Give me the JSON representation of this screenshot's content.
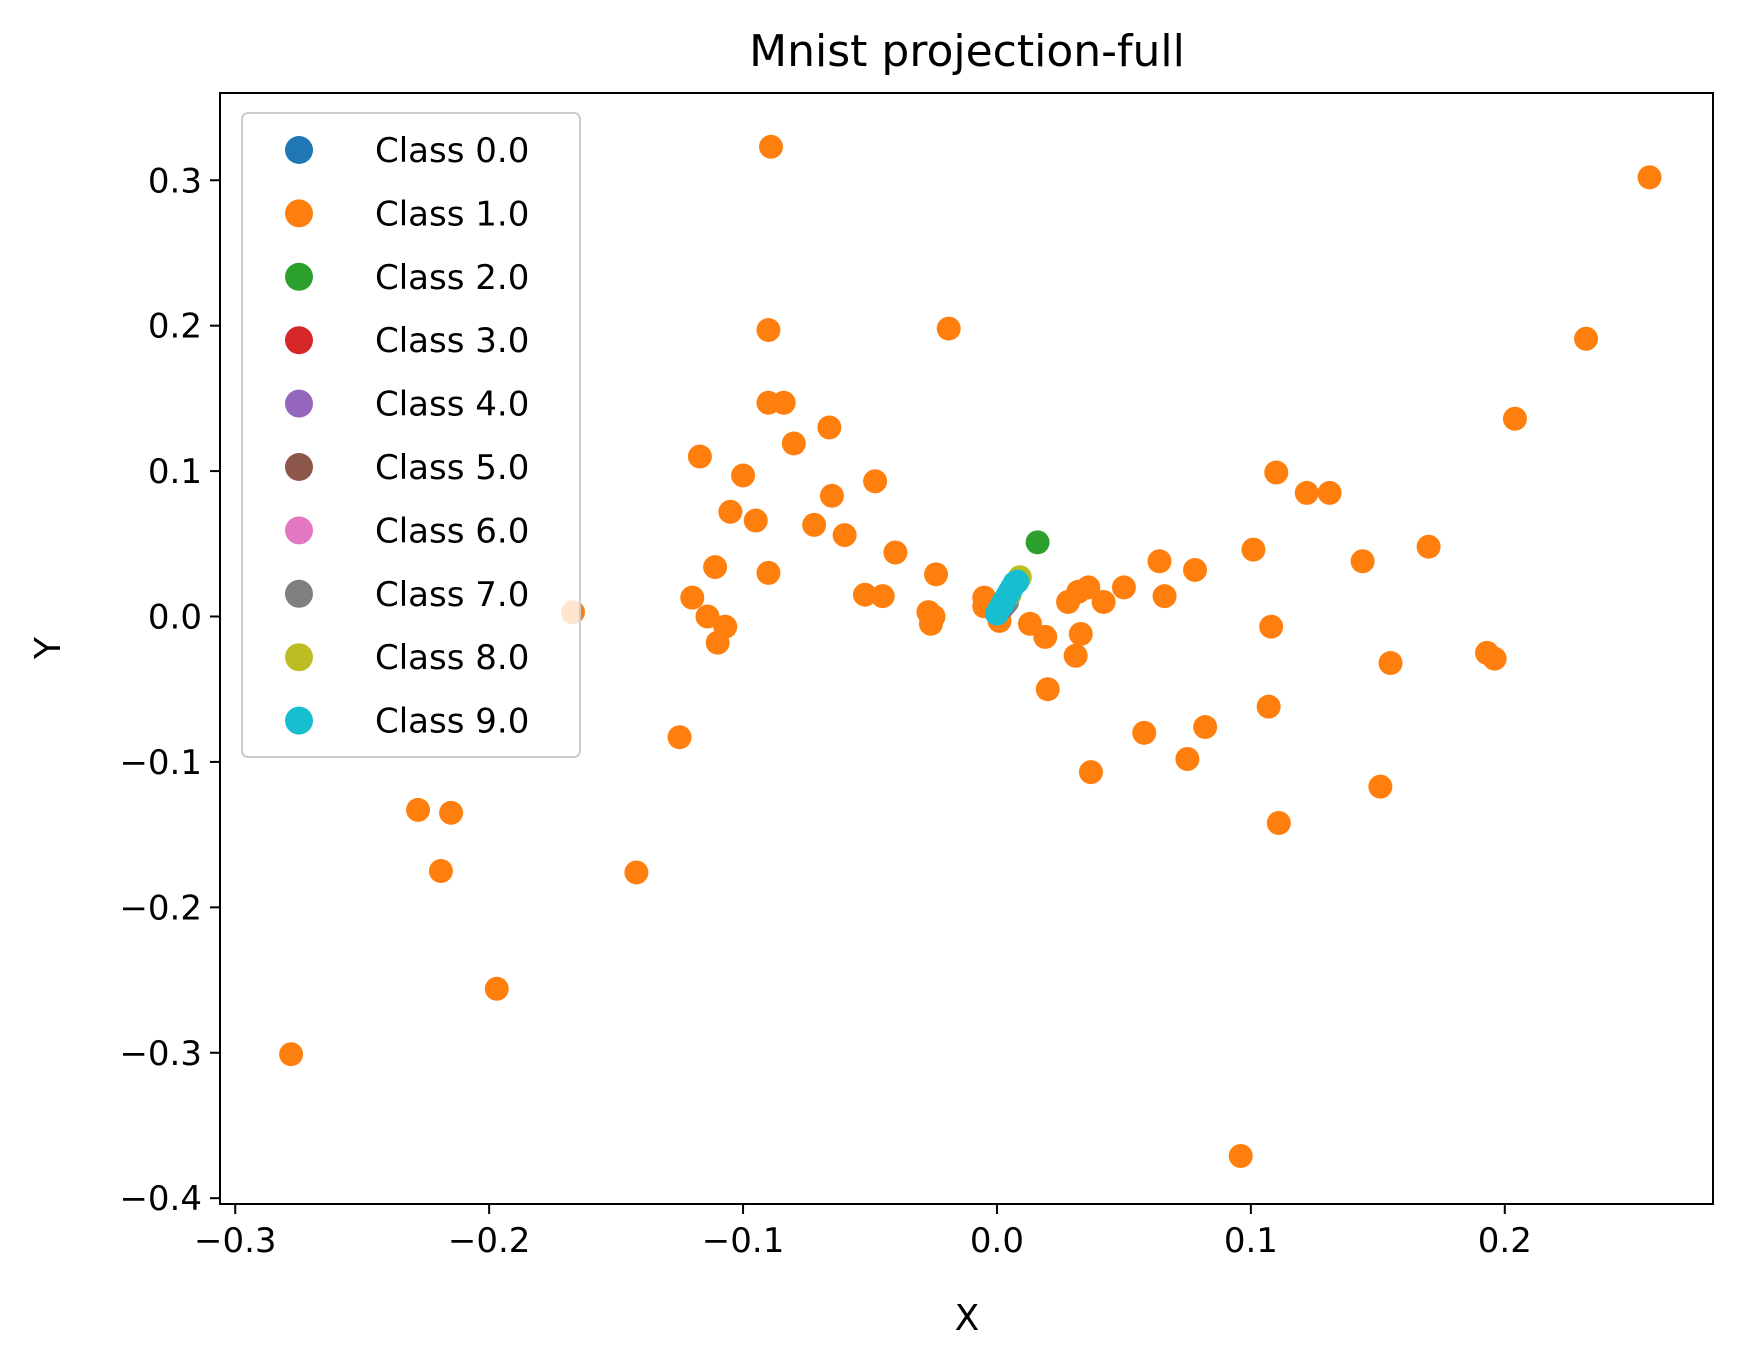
{
  "chart_data": {
    "type": "scatter",
    "title": "Mnist projection-full",
    "xlabel": "X",
    "ylabel": "Y",
    "xlim": [
      -0.306,
      0.282
    ],
    "ylim": [
      -0.404,
      0.36
    ],
    "xticks": [
      {
        "value": -0.3,
        "label": "−0.3"
      },
      {
        "value": -0.2,
        "label": "−0.2"
      },
      {
        "value": -0.1,
        "label": "−0.1"
      },
      {
        "value": 0.0,
        "label": "0.0"
      },
      {
        "value": 0.1,
        "label": "0.1"
      },
      {
        "value": 0.2,
        "label": "0.2"
      }
    ],
    "yticks": [
      {
        "value": 0.3,
        "label": "0.3"
      },
      {
        "value": 0.2,
        "label": "0.2"
      },
      {
        "value": 0.1,
        "label": "0.1"
      },
      {
        "value": 0.0,
        "label": "0.0"
      },
      {
        "value": -0.1,
        "label": "−0.1"
      },
      {
        "value": -0.2,
        "label": "−0.2"
      },
      {
        "value": -0.3,
        "label": "−0.3"
      },
      {
        "value": -0.4,
        "label": "−0.4"
      }
    ],
    "grid": false,
    "legend_position": "upper-left",
    "series": [
      {
        "name": "Class 0.0",
        "color": "#1f77b4",
        "points": [
          [
            0.0,
            0.002
          ],
          [
            0.001,
            0.004
          ]
        ]
      },
      {
        "name": "Class 1.0",
        "color": "#ff7f0e",
        "points": [
          [
            -0.089,
            0.323
          ],
          [
            0.257,
            0.302
          ],
          [
            -0.09,
            0.197
          ],
          [
            -0.019,
            0.198
          ],
          [
            0.232,
            0.191
          ],
          [
            -0.09,
            0.147
          ],
          [
            -0.084,
            0.147
          ],
          [
            0.204,
            0.136
          ],
          [
            -0.066,
            0.13
          ],
          [
            -0.08,
            0.119
          ],
          [
            -0.117,
            0.11
          ],
          [
            0.11,
            0.099
          ],
          [
            -0.1,
            0.097
          ],
          [
            -0.048,
            0.093
          ],
          [
            0.122,
            0.085
          ],
          [
            0.131,
            0.085
          ],
          [
            -0.065,
            0.083
          ],
          [
            -0.105,
            0.072
          ],
          [
            -0.095,
            0.066
          ],
          [
            -0.072,
            0.063
          ],
          [
            -0.06,
            0.056
          ],
          [
            0.101,
            0.046
          ],
          [
            0.17,
            0.048
          ],
          [
            -0.04,
            0.044
          ],
          [
            0.064,
            0.038
          ],
          [
            0.144,
            0.038
          ],
          [
            -0.111,
            0.034
          ],
          [
            0.078,
            0.032
          ],
          [
            -0.09,
            0.03
          ],
          [
            -0.024,
            0.029
          ],
          [
            0.05,
            0.02
          ],
          [
            0.036,
            0.02
          ],
          [
            0.032,
            0.017
          ],
          [
            -0.052,
            0.015
          ],
          [
            -0.045,
            0.014
          ],
          [
            -0.005,
            0.013
          ],
          [
            -0.12,
            0.013
          ],
          [
            0.066,
            0.014
          ],
          [
            0.028,
            0.01
          ],
          [
            0.042,
            0.01
          ],
          [
            -0.005,
            0.007
          ],
          [
            -0.027,
            0.003
          ],
          [
            -0.025,
            0.0
          ],
          [
            -0.114,
            0.0
          ],
          [
            -0.026,
            -0.005
          ],
          [
            0.001,
            -0.003
          ],
          [
            0.013,
            -0.005
          ],
          [
            -0.107,
            -0.007
          ],
          [
            0.108,
            -0.007
          ],
          [
            0.019,
            -0.014
          ],
          [
            0.033,
            -0.012
          ],
          [
            -0.11,
            -0.018
          ],
          [
            0.031,
            -0.027
          ],
          [
            0.193,
            -0.025
          ],
          [
            0.196,
            -0.029
          ],
          [
            0.155,
            -0.032
          ],
          [
            0.02,
            -0.05
          ],
          [
            0.107,
            -0.062
          ],
          [
            0.058,
            -0.08
          ],
          [
            -0.125,
            -0.083
          ],
          [
            0.082,
            -0.076
          ],
          [
            0.075,
            -0.098
          ],
          [
            0.037,
            -0.107
          ],
          [
            0.151,
            -0.117
          ],
          [
            0.111,
            -0.142
          ],
          [
            -0.228,
            -0.133
          ],
          [
            -0.215,
            -0.135
          ],
          [
            -0.219,
            -0.175
          ],
          [
            -0.142,
            -0.176
          ],
          [
            -0.197,
            -0.256
          ],
          [
            -0.278,
            -0.301
          ],
          [
            0.096,
            -0.371
          ],
          [
            -0.167,
            0.003
          ]
        ]
      },
      {
        "name": "Class 2.0",
        "color": "#2ca02c",
        "points": [
          [
            0.016,
            0.051
          ]
        ]
      },
      {
        "name": "Class 3.0",
        "color": "#d62728",
        "points": [
          [
            0.002,
            0.006
          ]
        ]
      },
      {
        "name": "Class 4.0",
        "color": "#9467bd",
        "points": [
          [
            0.003,
            0.008
          ]
        ]
      },
      {
        "name": "Class 5.0",
        "color": "#8c564b",
        "points": [
          [
            0.002,
            0.007
          ]
        ]
      },
      {
        "name": "Class 6.0",
        "color": "#e377c2",
        "points": [
          [
            0.001,
            0.005
          ]
        ]
      },
      {
        "name": "Class 7.0",
        "color": "#7f7f7f",
        "points": [
          [
            0.004,
            0.01
          ]
        ]
      },
      {
        "name": "Class 8.0",
        "color": "#bcbd22",
        "points": [
          [
            0.009,
            0.027
          ],
          [
            0.005,
            0.015
          ]
        ]
      },
      {
        "name": "Class 9.0",
        "color": "#17becf",
        "points": [
          [
            0.0,
            0.002
          ],
          [
            0.001,
            0.005
          ],
          [
            0.002,
            0.008
          ],
          [
            0.003,
            0.011
          ],
          [
            0.004,
            0.014
          ],
          [
            0.005,
            0.017
          ],
          [
            0.006,
            0.02
          ],
          [
            0.007,
            0.023
          ],
          [
            0.008,
            0.024
          ]
        ]
      }
    ]
  }
}
